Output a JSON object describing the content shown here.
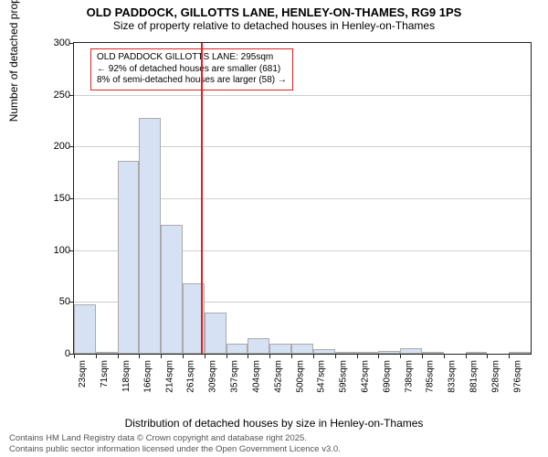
{
  "title": "OLD PADDOCK, GILLOTTS LANE, HENLEY-ON-THAMES, RG9 1PS",
  "subtitle": "Size of property relative to detached houses in Henley-on-Thames",
  "ylabel": "Number of detached properties",
  "xlabel": "Distribution of detached houses by size in Henley-on-Thames",
  "credit1": "Contains HM Land Registry data © Crown copyright and database right 2025.",
  "credit2": "Contains public sector information licensed under the Open Government Licence v3.0.",
  "chart": {
    "type": "histogram",
    "bar_color": "#d6e2f3",
    "bar_border": "#aaaaaa",
    "grid_color": "#cfcfcf",
    "axis_color": "#222222",
    "marker_color": "#dd2222",
    "background": "#ffffff",
    "ylim": [
      0,
      300
    ],
    "ytick_step": 50,
    "yticks": [
      0,
      50,
      100,
      150,
      200,
      250,
      300
    ],
    "xticks": [
      "23sqm",
      "71sqm",
      "118sqm",
      "166sqm",
      "214sqm",
      "261sqm",
      "309sqm",
      "357sqm",
      "404sqm",
      "452sqm",
      "500sqm",
      "547sqm",
      "595sqm",
      "642sqm",
      "690sqm",
      "738sqm",
      "785sqm",
      "833sqm",
      "881sqm",
      "928sqm",
      "976sqm"
    ],
    "values": [
      48,
      2,
      186,
      228,
      124,
      68,
      40,
      10,
      15,
      10,
      10,
      4,
      2,
      2,
      3,
      5,
      2,
      0,
      2,
      0,
      1
    ],
    "marker_position_bin": 5.85,
    "annotation": {
      "line1": "OLD PADDOCK GILLOTTS LANE: 295sqm",
      "line2": "← 92% of detached houses are smaller (681)",
      "line3": "8% of semi-detached houses are larger (58) →"
    }
  }
}
